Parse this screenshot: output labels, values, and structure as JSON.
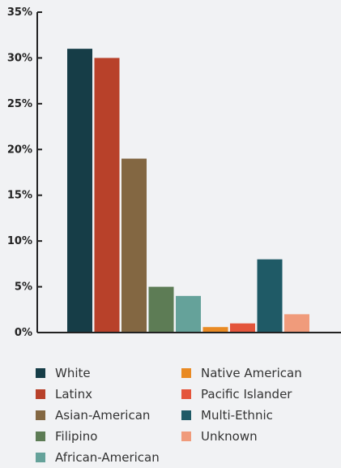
{
  "chart_data": {
    "type": "bar",
    "categories": [
      "White",
      "Latinx",
      "Asian-American",
      "Filipino",
      "African-American",
      "Native American",
      "Pacific Islander",
      "Multi-Ethnic",
      "Unknown"
    ],
    "values": [
      31,
      30,
      19,
      5,
      4,
      0.6,
      1,
      8,
      2
    ],
    "colors": [
      "#163d47",
      "#b8412a",
      "#836742",
      "#5d7c55",
      "#65a29a",
      "#e98a23",
      "#e4553b",
      "#1f5a66",
      "#f09b7b"
    ],
    "ylim": [
      0,
      35
    ],
    "yticks": [
      "0%",
      "5%",
      "10%",
      "15%",
      "20%",
      "25%",
      "30%",
      "35%"
    ],
    "ytick_values": [
      0,
      5,
      10,
      15,
      20,
      25,
      30,
      35
    ],
    "grid": false,
    "legend_position": "bottom"
  }
}
